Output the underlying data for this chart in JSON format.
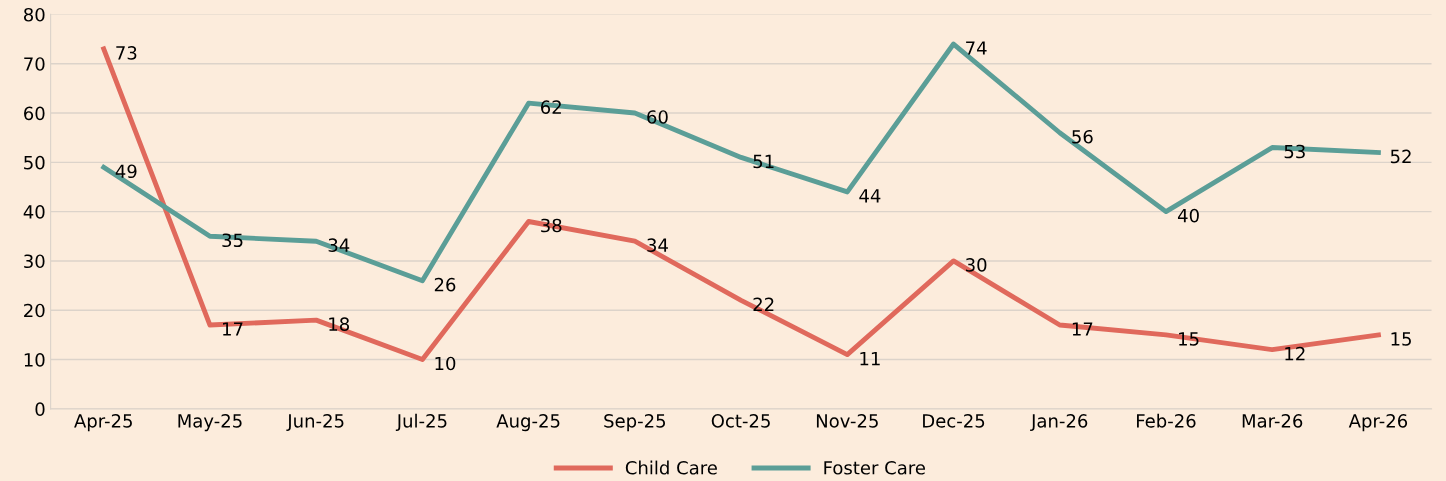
{
  "chart_data": {
    "type": "line",
    "categories": [
      "Apr-25",
      "May-25",
      "Jun-25",
      "Jul-25",
      "Aug-25",
      "Sep-25",
      "Oct-25",
      "Nov-25",
      "Dec-25",
      "Jan-26",
      "Feb-26",
      "Mar-26",
      "Apr-26"
    ],
    "series": [
      {
        "name": "Child Care",
        "color": "#e0695c",
        "values": [
          73,
          17,
          18,
          10,
          38,
          34,
          22,
          11,
          30,
          17,
          15,
          12,
          15
        ]
      },
      {
        "name": "Foster Care",
        "color": "#5b9e97",
        "values": [
          49,
          35,
          34,
          26,
          62,
          60,
          51,
          44,
          74,
          56,
          40,
          53,
          52
        ]
      }
    ],
    "ylim": [
      0,
      80
    ],
    "yticks": [
      0,
      10,
      20,
      30,
      40,
      50,
      60,
      70,
      80
    ],
    "grid": "y",
    "legend": "bottom",
    "data_labels": true,
    "marker": "none",
    "line_style": "solid"
  }
}
